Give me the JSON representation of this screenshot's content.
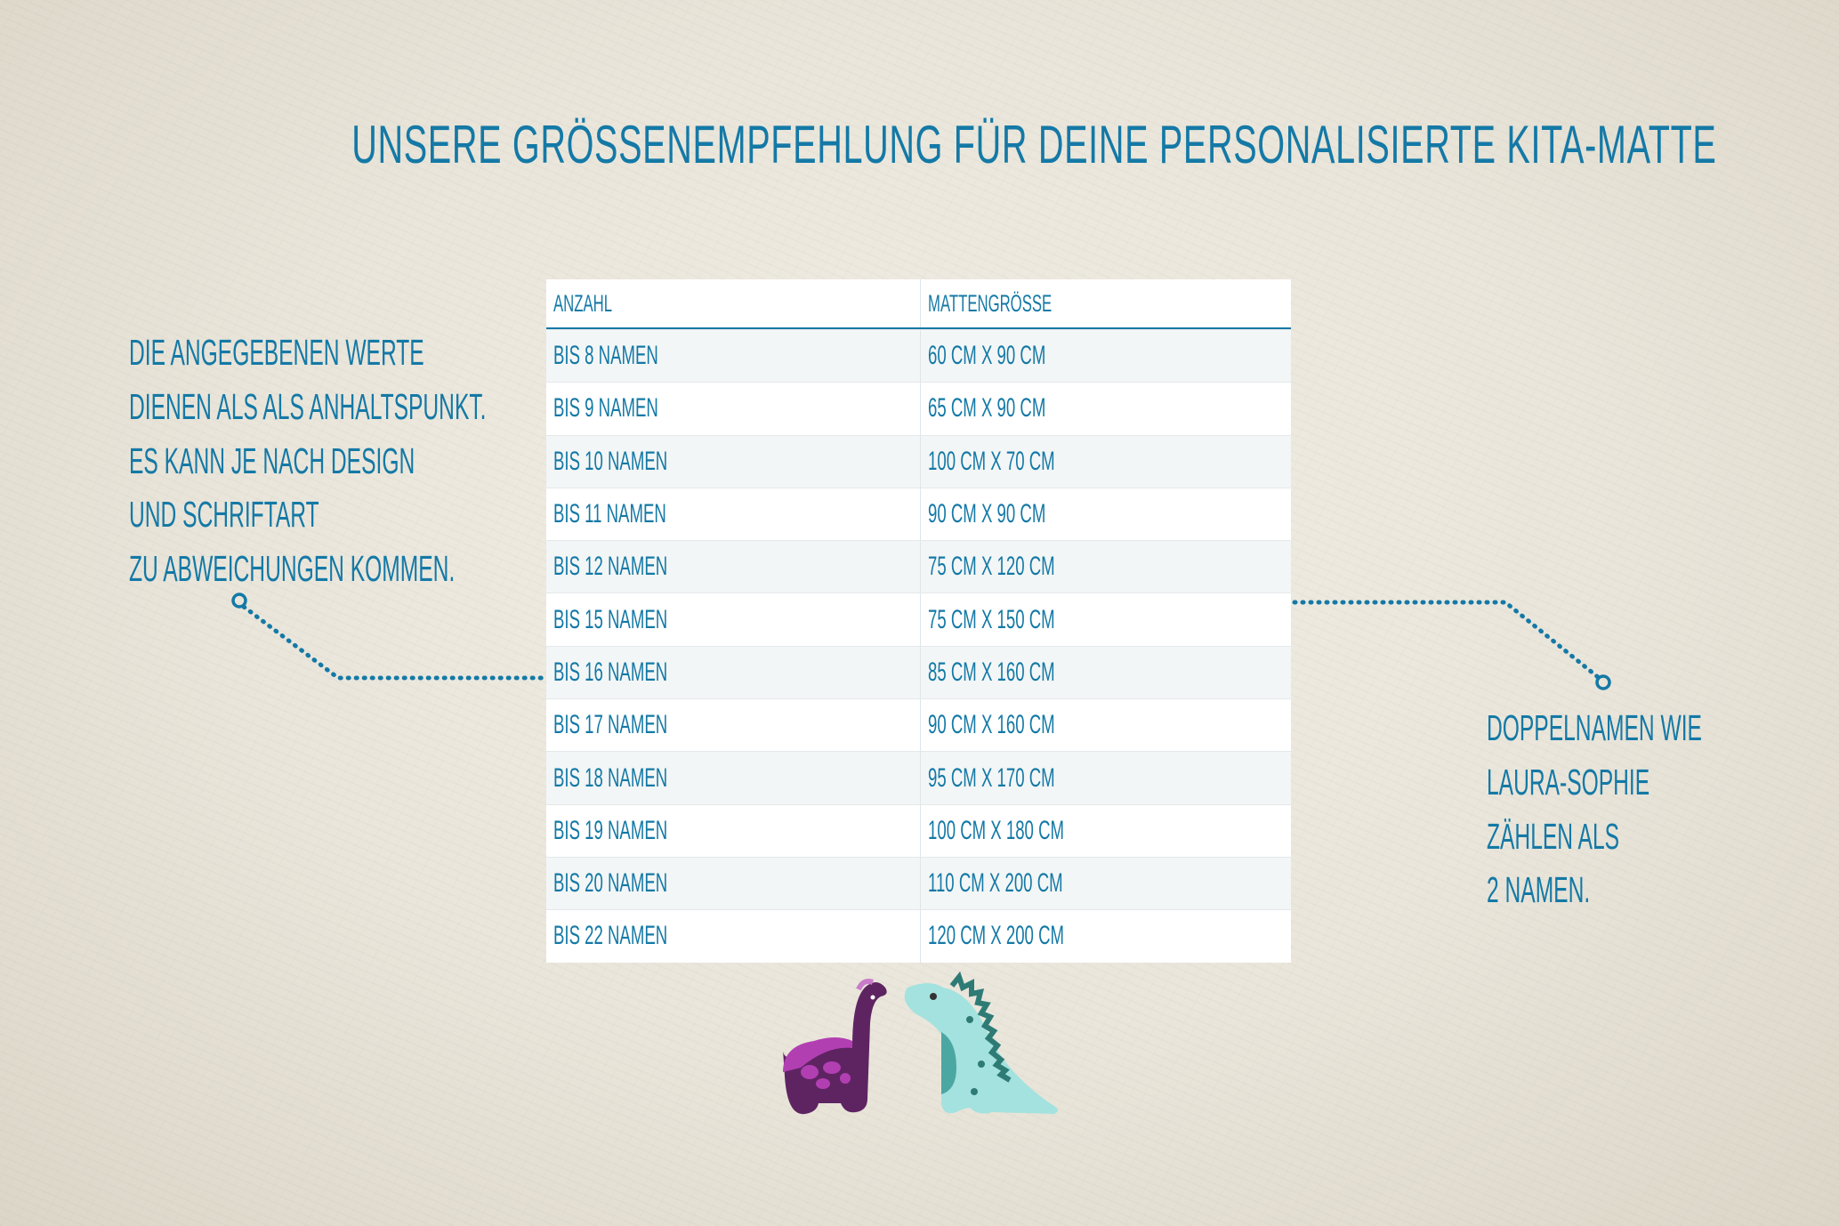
{
  "title": "UNSERE GRÖSSENEMPFEHLUNG FÜR DEINE PERSONALISIERTE KITA-MATTE",
  "table": {
    "headers": [
      "ANZAHL",
      "MATTENGRÖSSE"
    ],
    "rows": [
      [
        "BIS 8 NAMEN",
        "60 CM X 90 CM"
      ],
      [
        "BIS 9 NAMEN",
        "65 CM X 90 CM"
      ],
      [
        "BIS 10 NAMEN",
        "100 CM X 70 CM"
      ],
      [
        "BIS 11 NAMEN",
        "90 CM X 90 CM"
      ],
      [
        "BIS 12 NAMEN",
        "75 CM X 120 CM"
      ],
      [
        "BIS 15 NAMEN",
        "75 CM X 150 CM"
      ],
      [
        "BIS 16 NAMEN",
        "85 CM X 160 CM"
      ],
      [
        "BIS 17 NAMEN",
        "90 CM X 160 CM"
      ],
      [
        "BIS 18 NAMEN",
        "95 CM X 170 CM"
      ],
      [
        "BIS 19 NAMEN",
        "100 CM X 180 CM"
      ],
      [
        "BIS 20 NAMEN",
        "110 CM X 200 CM"
      ],
      [
        "BIS 22 NAMEN",
        "120 CM X 200 CM"
      ]
    ]
  },
  "left_note": [
    "DIE ANGEGEBENEN WERTE",
    "DIENEN ALS ALS ANHALTSPUNKT.",
    "ES KANN JE NACH DESIGN",
    "UND SCHRIFTART",
    "ZU ABWEICHUNGEN KOMMEN."
  ],
  "right_note": [
    "DOPPELNAMEN WIE",
    "LAURA-SOPHIE",
    "ZÄHLEN ALS",
    "2 NAMEN."
  ],
  "colors": {
    "accent": "#1479a6",
    "background": "#ebe7dd",
    "dino_purple": "#5e2462",
    "dino_teal": "#a3e2df"
  },
  "illustration": "two-dinosaurs"
}
